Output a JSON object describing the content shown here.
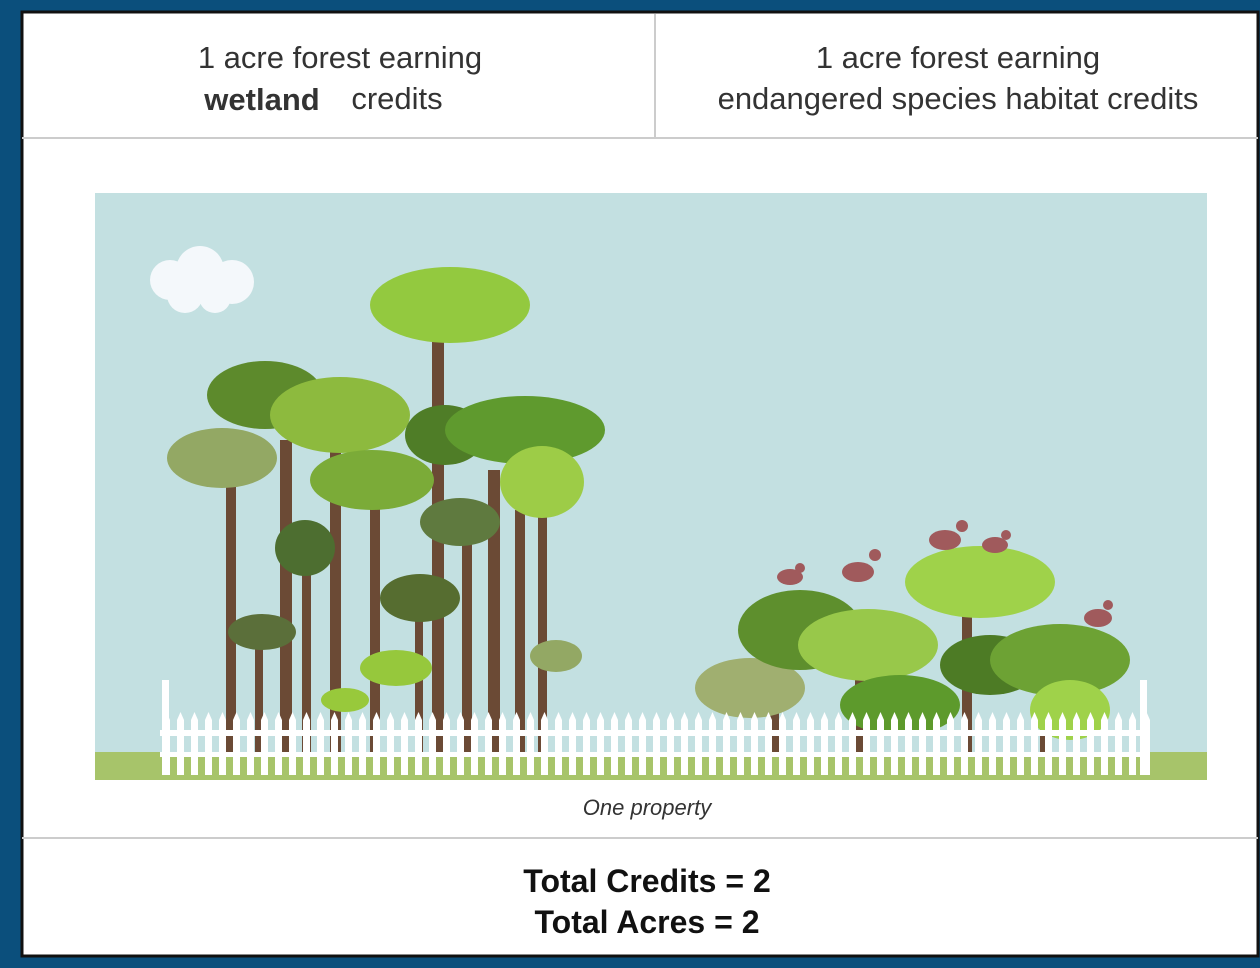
{
  "header": {
    "left": {
      "line1": "1 acre forest earning",
      "highlight": "wetland",
      "line2": "credits"
    },
    "right": {
      "line1": "1 acre forest earning",
      "line2": "endangered species habitat credits"
    }
  },
  "image": {
    "caption": "One property"
  },
  "footer": {
    "line1": "Total Credits = 2",
    "line2": "Total Acres = 2"
  }
}
